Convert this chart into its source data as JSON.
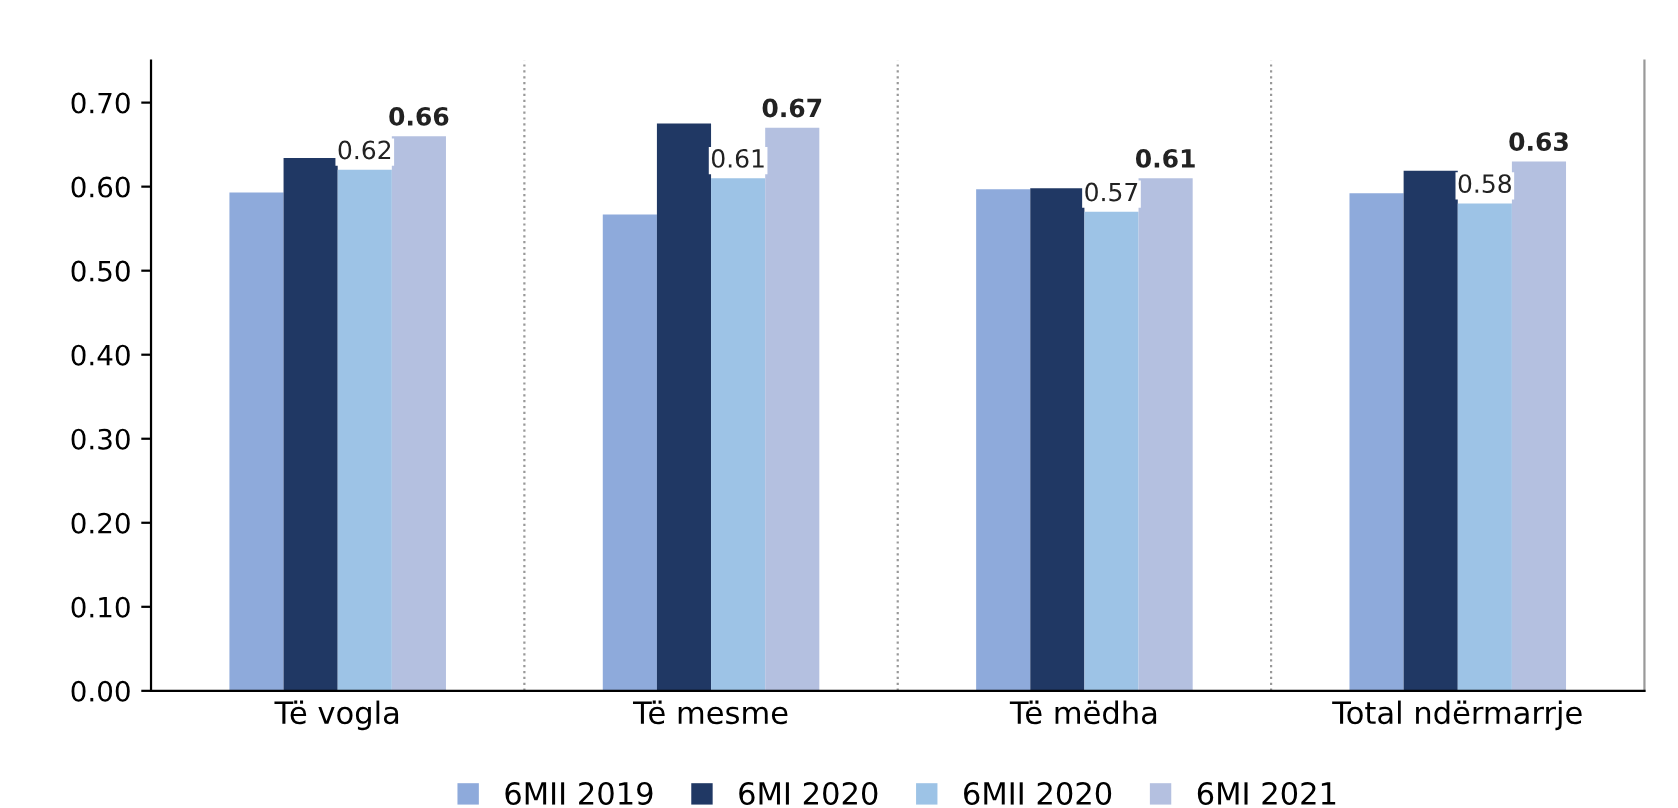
{
  "chart_data": {
    "type": "bar",
    "categories": [
      "Të vogla",
      "Të mesme",
      "Të mëdha",
      "Total ndërmarrje"
    ],
    "series": [
      {
        "name": "6MII 2019",
        "color": "#8eaadb",
        "values": [
          0.593,
          0.567,
          0.597,
          0.592
        ]
      },
      {
        "name": "6MI 2020",
        "color": "#203864",
        "values": [
          0.634,
          0.675,
          0.598,
          0.619
        ]
      },
      {
        "name": "6MII 2020",
        "color": "#9dc3e6",
        "values": [
          0.62,
          0.61,
          0.57,
          0.58
        ],
        "value_labels": [
          "0.62",
          "0.61",
          "0.57",
          "0.58"
        ]
      },
      {
        "name": "6MI 2021",
        "color": "#b4c0e0",
        "values": [
          0.66,
          0.67,
          0.61,
          0.63
        ],
        "value_labels": [
          "0.66",
          "0.67",
          "0.61",
          "0.63"
        ]
      }
    ],
    "ylim": [
      0,
      0.75
    ],
    "yticks": [
      {
        "value": 0,
        "label": "0.00"
      },
      {
        "value": 0.1,
        "label": "0.10"
      },
      {
        "value": 0.2,
        "label": "0.20"
      },
      {
        "value": 0.3,
        "label": "0.30"
      },
      {
        "value": 0.4,
        "label": "0.40"
      },
      {
        "value": 0.5,
        "label": "0.50"
      },
      {
        "value": 0.6,
        "label": "0.60"
      },
      {
        "value": 0.7,
        "label": "0.70"
      }
    ],
    "legend": "bottom",
    "grid": false
  }
}
